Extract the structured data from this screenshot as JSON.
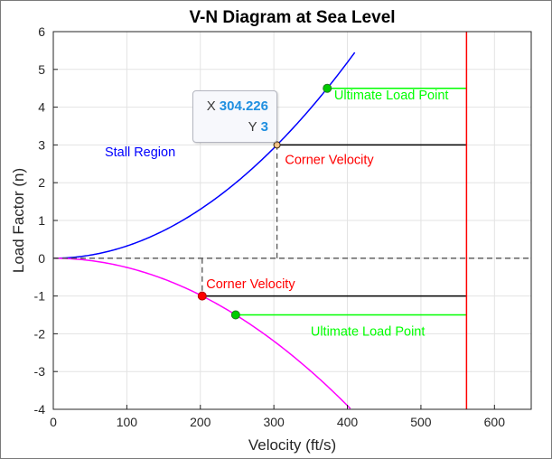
{
  "chart_data": {
    "type": "line",
    "title": "V-N Diagram at Sea Level",
    "xlabel": "Velocity (ft/s)",
    "ylabel": "Load Factor (n)",
    "xlim": [
      0,
      650
    ],
    "ylim": [
      -4,
      6
    ],
    "xticks": [
      0,
      100,
      200,
      300,
      400,
      500,
      600
    ],
    "yticks": [
      -4,
      -3,
      -2,
      -1,
      0,
      1,
      2,
      3,
      4,
      5,
      6
    ],
    "grid": true,
    "series": [
      {
        "color": "#0000ff",
        "formula": "n = 3 * (V / 304.226)^2",
        "x_range": [
          0,
          410
        ]
      },
      {
        "color": "#ff00ff",
        "formula": "n = -(V / 202.5)^2",
        "x_range": [
          0,
          405
        ]
      }
    ],
    "lines": [
      {
        "color": "#000000",
        "style": "solid",
        "x": [
          304.226,
          562
        ],
        "y": [
          3,
          3
        ]
      },
      {
        "color": "#000000",
        "style": "solid",
        "x": [
          202.5,
          562
        ],
        "y": [
          -1,
          -1
        ]
      },
      {
        "color": "#00ff00",
        "style": "solid",
        "x": [
          372.6,
          562
        ],
        "y": [
          4.5,
          4.5
        ]
      },
      {
        "color": "#00ff00",
        "style": "solid",
        "x": [
          248.0,
          562
        ],
        "y": [
          -1.5,
          -1.5
        ]
      },
      {
        "color": "#ff0000",
        "style": "solid",
        "x": [
          562,
          562
        ],
        "y": [
          -4,
          6
        ]
      },
      {
        "color": "#555555",
        "style": "dashed",
        "x": [
          0,
          650
        ],
        "y": [
          0,
          0
        ]
      },
      {
        "color": "#555555",
        "style": "dashed",
        "x": [
          304.226,
          304.226
        ],
        "y": [
          0,
          3
        ]
      },
      {
        "color": "#555555",
        "style": "dashed",
        "x": [
          202.5,
          202.5
        ],
        "y": [
          0,
          -1
        ]
      }
    ],
    "points": [
      {
        "x": 372.6,
        "y": 4.5,
        "color": "#00cc00",
        "edge": "#1f7a1f"
      },
      {
        "x": 248.0,
        "y": -1.5,
        "color": "#00cc00",
        "edge": "#1f7a1f"
      },
      {
        "x": 202.5,
        "y": -1,
        "color": "#ff0000",
        "edge": "#b00000"
      },
      {
        "x": 304.226,
        "y": 3,
        "color": "#f5c48a",
        "edge": "#3a2a10"
      }
    ],
    "annotations": [
      {
        "text": "Ultimate Load Point",
        "x": 382,
        "y": 4.2,
        "color": "#00ff00"
      },
      {
        "text": "Corner Velocity",
        "x": 315,
        "y": 2.5,
        "color": "#ff0000"
      },
      {
        "text": "Stall Region",
        "x": 70,
        "y": 2.7,
        "color": "#0000ff"
      },
      {
        "text": "Corner Velocity",
        "x": 208,
        "y": -0.8,
        "color": "#ff0000"
      },
      {
        "text": "Ultimate Load Point",
        "x": 350,
        "y": -2.05,
        "color": "#00ff00"
      }
    ],
    "datatip": {
      "x_label": "X",
      "x_value": "304.226",
      "y_label": "Y",
      "y_value": "3"
    }
  }
}
